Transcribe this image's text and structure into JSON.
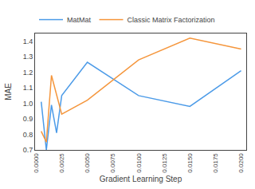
{
  "chart_data": {
    "type": "line",
    "xlabel": "Gradient Learning Step",
    "ylabel": "MAE",
    "series": [
      {
        "name": "MatMat",
        "color": "#4C9BE8",
        "x": [
          0.0005,
          0.001,
          0.0015,
          0.002,
          0.0025,
          0.005,
          0.01,
          0.015,
          0.02
        ],
        "values": [
          1.01,
          0.7,
          0.99,
          0.81,
          1.05,
          1.265,
          1.05,
          0.98,
          1.21
        ]
      },
      {
        "name": "Classic Matrix Factorization",
        "color": "#F5963C",
        "x": [
          0.0005,
          0.001,
          0.0015,
          0.0025,
          0.005,
          0.01,
          0.015,
          0.02
        ],
        "values": [
          0.82,
          0.75,
          1.18,
          0.93,
          1.02,
          1.28,
          1.42,
          1.35
        ]
      }
    ],
    "xlim": [
      -0.0001,
      0.0205
    ],
    "xticks": [
      {
        "value": 0,
        "label": "0.0000"
      },
      0.0025,
      {
        "value": 0.005,
        "label": "0.0050"
      },
      0.0075,
      {
        "value": 0.01,
        "label": "0.0100"
      },
      0.0125,
      {
        "value": 0.015,
        "label": "0.0150"
      },
      0.0175,
      {
        "value": 0.02,
        "label": "0.0200"
      }
    ],
    "ylim": [
      0.7,
      1.45
    ],
    "yticks": [
      0.7,
      0.8,
      0.9,
      {
        "value": 1,
        "label": "1.0"
      },
      1.1,
      1.2,
      1.3,
      1.4
    ],
    "legend": "upper left",
    "grid": false
  }
}
